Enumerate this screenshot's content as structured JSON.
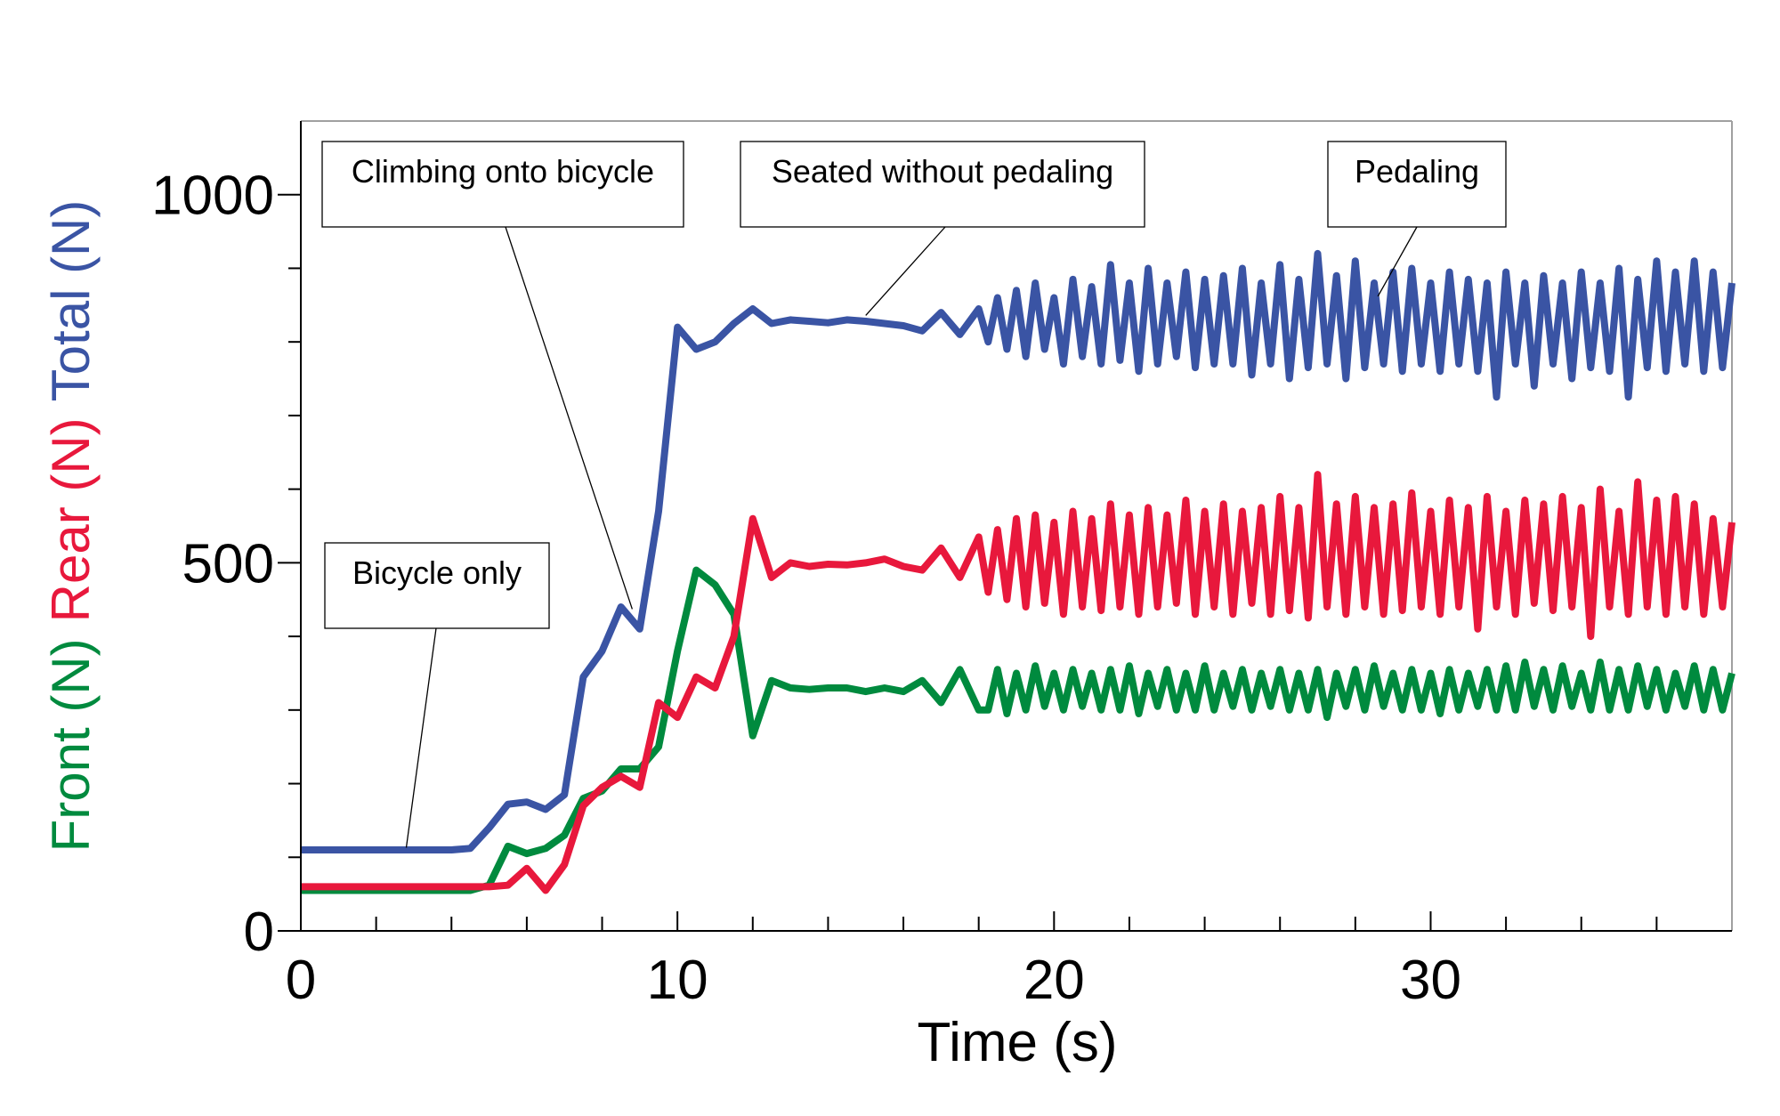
{
  "chart_data": {
    "type": "line",
    "x_label": "Time (s)",
    "xlim": [
      0,
      38
    ],
    "xticks": [
      0,
      10,
      20,
      30
    ],
    "xminorticks": [
      2,
      4,
      6,
      8,
      12,
      14,
      16,
      18,
      22,
      24,
      26,
      28,
      32,
      34,
      36
    ],
    "ylim": [
      0,
      1100
    ],
    "yticks": [
      0,
      500,
      1000
    ],
    "yminorticks": [
      100,
      200,
      300,
      400,
      600,
      700,
      800,
      900
    ],
    "x": [
      0,
      0.5,
      1,
      1.5,
      2,
      2.5,
      3,
      3.5,
      4,
      4.5,
      5,
      5.5,
      6,
      6.5,
      7,
      7.5,
      8,
      8.5,
      9,
      9.5,
      10,
      10.5,
      11,
      11.5,
      12,
      12.5,
      13,
      13.5,
      14,
      14.5,
      15,
      15.5,
      16,
      16.5,
      17,
      17.5,
      18,
      18.25,
      18.5,
      18.75,
      19,
      19.25,
      19.5,
      19.75,
      20,
      20.25,
      20.5,
      20.75,
      21,
      21.25,
      21.5,
      21.75,
      22,
      22.25,
      22.5,
      22.75,
      23,
      23.25,
      23.5,
      23.75,
      24,
      24.25,
      24.5,
      24.75,
      25,
      25.25,
      25.5,
      25.75,
      26,
      26.25,
      26.5,
      26.75,
      27,
      27.25,
      27.5,
      27.75,
      28,
      28.25,
      28.5,
      28.75,
      29,
      29.25,
      29.5,
      29.75,
      30,
      30.25,
      30.5,
      30.75,
      31,
      31.25,
      31.5,
      31.75,
      32,
      32.25,
      32.5,
      32.75,
      33,
      33.25,
      33.5,
      33.75,
      34,
      34.25,
      34.5,
      34.75,
      35,
      35.25,
      35.5,
      35.75,
      36,
      36.25,
      36.5,
      36.75,
      37,
      37.25,
      37.5,
      37.75,
      38
    ],
    "series": [
      {
        "name": "Front (N)",
        "color": "#008a3e",
        "values": [
          55,
          55,
          55,
          55,
          55,
          55,
          55,
          55,
          55,
          55,
          62,
          115,
          105,
          112,
          130,
          180,
          190,
          220,
          220,
          250,
          380,
          490,
          470,
          430,
          265,
          340,
          330,
          328,
          330,
          330,
          325,
          330,
          325,
          340,
          310,
          355,
          300,
          300,
          355,
          295,
          350,
          300,
          360,
          305,
          350,
          300,
          355,
          305,
          350,
          300,
          355,
          300,
          360,
          295,
          350,
          305,
          355,
          300,
          350,
          300,
          360,
          300,
          350,
          305,
          355,
          300,
          350,
          305,
          355,
          300,
          350,
          300,
          355,
          290,
          350,
          305,
          355,
          300,
          360,
          305,
          350,
          300,
          355,
          300,
          350,
          295,
          355,
          300,
          350,
          305,
          355,
          300,
          360,
          300,
          365,
          305,
          355,
          300,
          360,
          305,
          350,
          300,
          365,
          300,
          355,
          300,
          360,
          305,
          355,
          300,
          350,
          305,
          360,
          300,
          355,
          300,
          350
        ]
      },
      {
        "name": "Rear (N)",
        "color": "#e8183c",
        "values": [
          60,
          60,
          60,
          60,
          60,
          60,
          60,
          60,
          60,
          60,
          60,
          62,
          85,
          55,
          90,
          170,
          195,
          210,
          195,
          310,
          290,
          345,
          330,
          400,
          560,
          480,
          500,
          495,
          498,
          497,
          500,
          505,
          495,
          490,
          520,
          480,
          535,
          460,
          545,
          450,
          560,
          440,
          565,
          445,
          555,
          430,
          570,
          440,
          560,
          435,
          580,
          440,
          565,
          430,
          575,
          440,
          565,
          445,
          585,
          430,
          570,
          440,
          580,
          430,
          570,
          445,
          575,
          430,
          590,
          435,
          575,
          425,
          620,
          440,
          580,
          430,
          590,
          440,
          575,
          430,
          580,
          435,
          595,
          440,
          570,
          430,
          585,
          440,
          575,
          410,
          590,
          440,
          570,
          430,
          585,
          445,
          580,
          435,
          590,
          440,
          575,
          400,
          600,
          440,
          570,
          430,
          610,
          440,
          585,
          430,
          590,
          440,
          580,
          430,
          560,
          440,
          555
        ]
      },
      {
        "name": "Total (N)",
        "color": "#3a54a4",
        "values": [
          110,
          110,
          110,
          110,
          110,
          110,
          110,
          110,
          110,
          112,
          140,
          172,
          175,
          165,
          185,
          345,
          380,
          440,
          410,
          570,
          820,
          790,
          800,
          825,
          845,
          825,
          830,
          828,
          826,
          830,
          828,
          825,
          822,
          815,
          840,
          810,
          845,
          800,
          860,
          790,
          870,
          780,
          880,
          790,
          860,
          770,
          885,
          780,
          875,
          770,
          905,
          775,
          880,
          760,
          900,
          770,
          880,
          780,
          895,
          765,
          885,
          770,
          890,
          770,
          900,
          755,
          880,
          770,
          905,
          750,
          885,
          765,
          920,
          770,
          890,
          750,
          910,
          765,
          880,
          770,
          895,
          760,
          900,
          770,
          880,
          760,
          895,
          770,
          885,
          760,
          880,
          725,
          895,
          770,
          880,
          740,
          890,
          770,
          880,
          750,
          895,
          765,
          880,
          760,
          900,
          725,
          885,
          765,
          910,
          760,
          895,
          770,
          910,
          760,
          895,
          765,
          880
        ]
      }
    ],
    "annotations": [
      {
        "text": "Bicycle only",
        "x": 2.8,
        "y": 113
      },
      {
        "text": "Climbing onto bicycle",
        "x": 8.8,
        "y": 437
      },
      {
        "text": "Seated without pedaling",
        "x": 15,
        "y": 836
      },
      {
        "text": "Pedaling",
        "x": 28.6,
        "y": 862
      }
    ]
  }
}
